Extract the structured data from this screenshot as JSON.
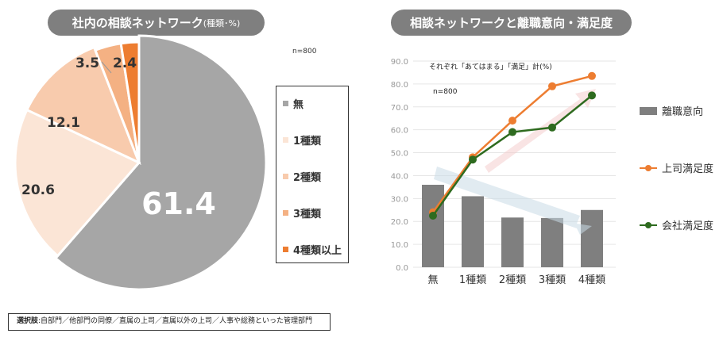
{
  "left": {
    "title": "社内の相談ネットワーク",
    "title_suffix": "(種類･%)",
    "n": "n=800"
  },
  "right": {
    "title": "相談ネットワークと離職意向・満足度",
    "annotation": "それぞれ「あてはまる」「満足」計(%)",
    "n": "n=800"
  },
  "note": {
    "label": "選択肢",
    "text": ":自部門／他部門の同僚／直属の上司／直属以外の上司／人事や総務といった管理部門"
  },
  "chart_data": [
    {
      "type": "pie",
      "categories": [
        "無",
        "1種類",
        "2種類",
        "3種類",
        "4種類以上"
      ],
      "values": [
        61.4,
        20.6,
        12.1,
        3.5,
        2.4
      ],
      "colors": [
        "#a6a6a6",
        "#fbe5d6",
        "#f8cbad",
        "#f4b183",
        "#ed7d31"
      ],
      "legend": "right"
    },
    {
      "type": "bar+line",
      "categories": [
        "無",
        "1種類",
        "2種類",
        "3種類",
        "4種類"
      ],
      "ylim": [
        0,
        90
      ],
      "yticks": [
        "0.0",
        "10.0",
        "20.0",
        "30.0",
        "40.0",
        "50.0",
        "60.0",
        "70.0",
        "80.0",
        "90.0"
      ],
      "grid": true,
      "legend": "right",
      "series": [
        {
          "name": "離職意向",
          "type": "bar",
          "color": "#7f7f7f",
          "values": [
            36,
            31,
            21.7,
            21.5,
            25
          ]
        },
        {
          "name": "上司満足度",
          "type": "line",
          "color": "#ed7d31",
          "values": [
            24,
            48,
            64,
            79,
            83.5
          ]
        },
        {
          "name": "会社満足度",
          "type": "line",
          "color": "#2e6b1f",
          "values": [
            22.5,
            47,
            59,
            61,
            75
          ]
        }
      ]
    }
  ]
}
